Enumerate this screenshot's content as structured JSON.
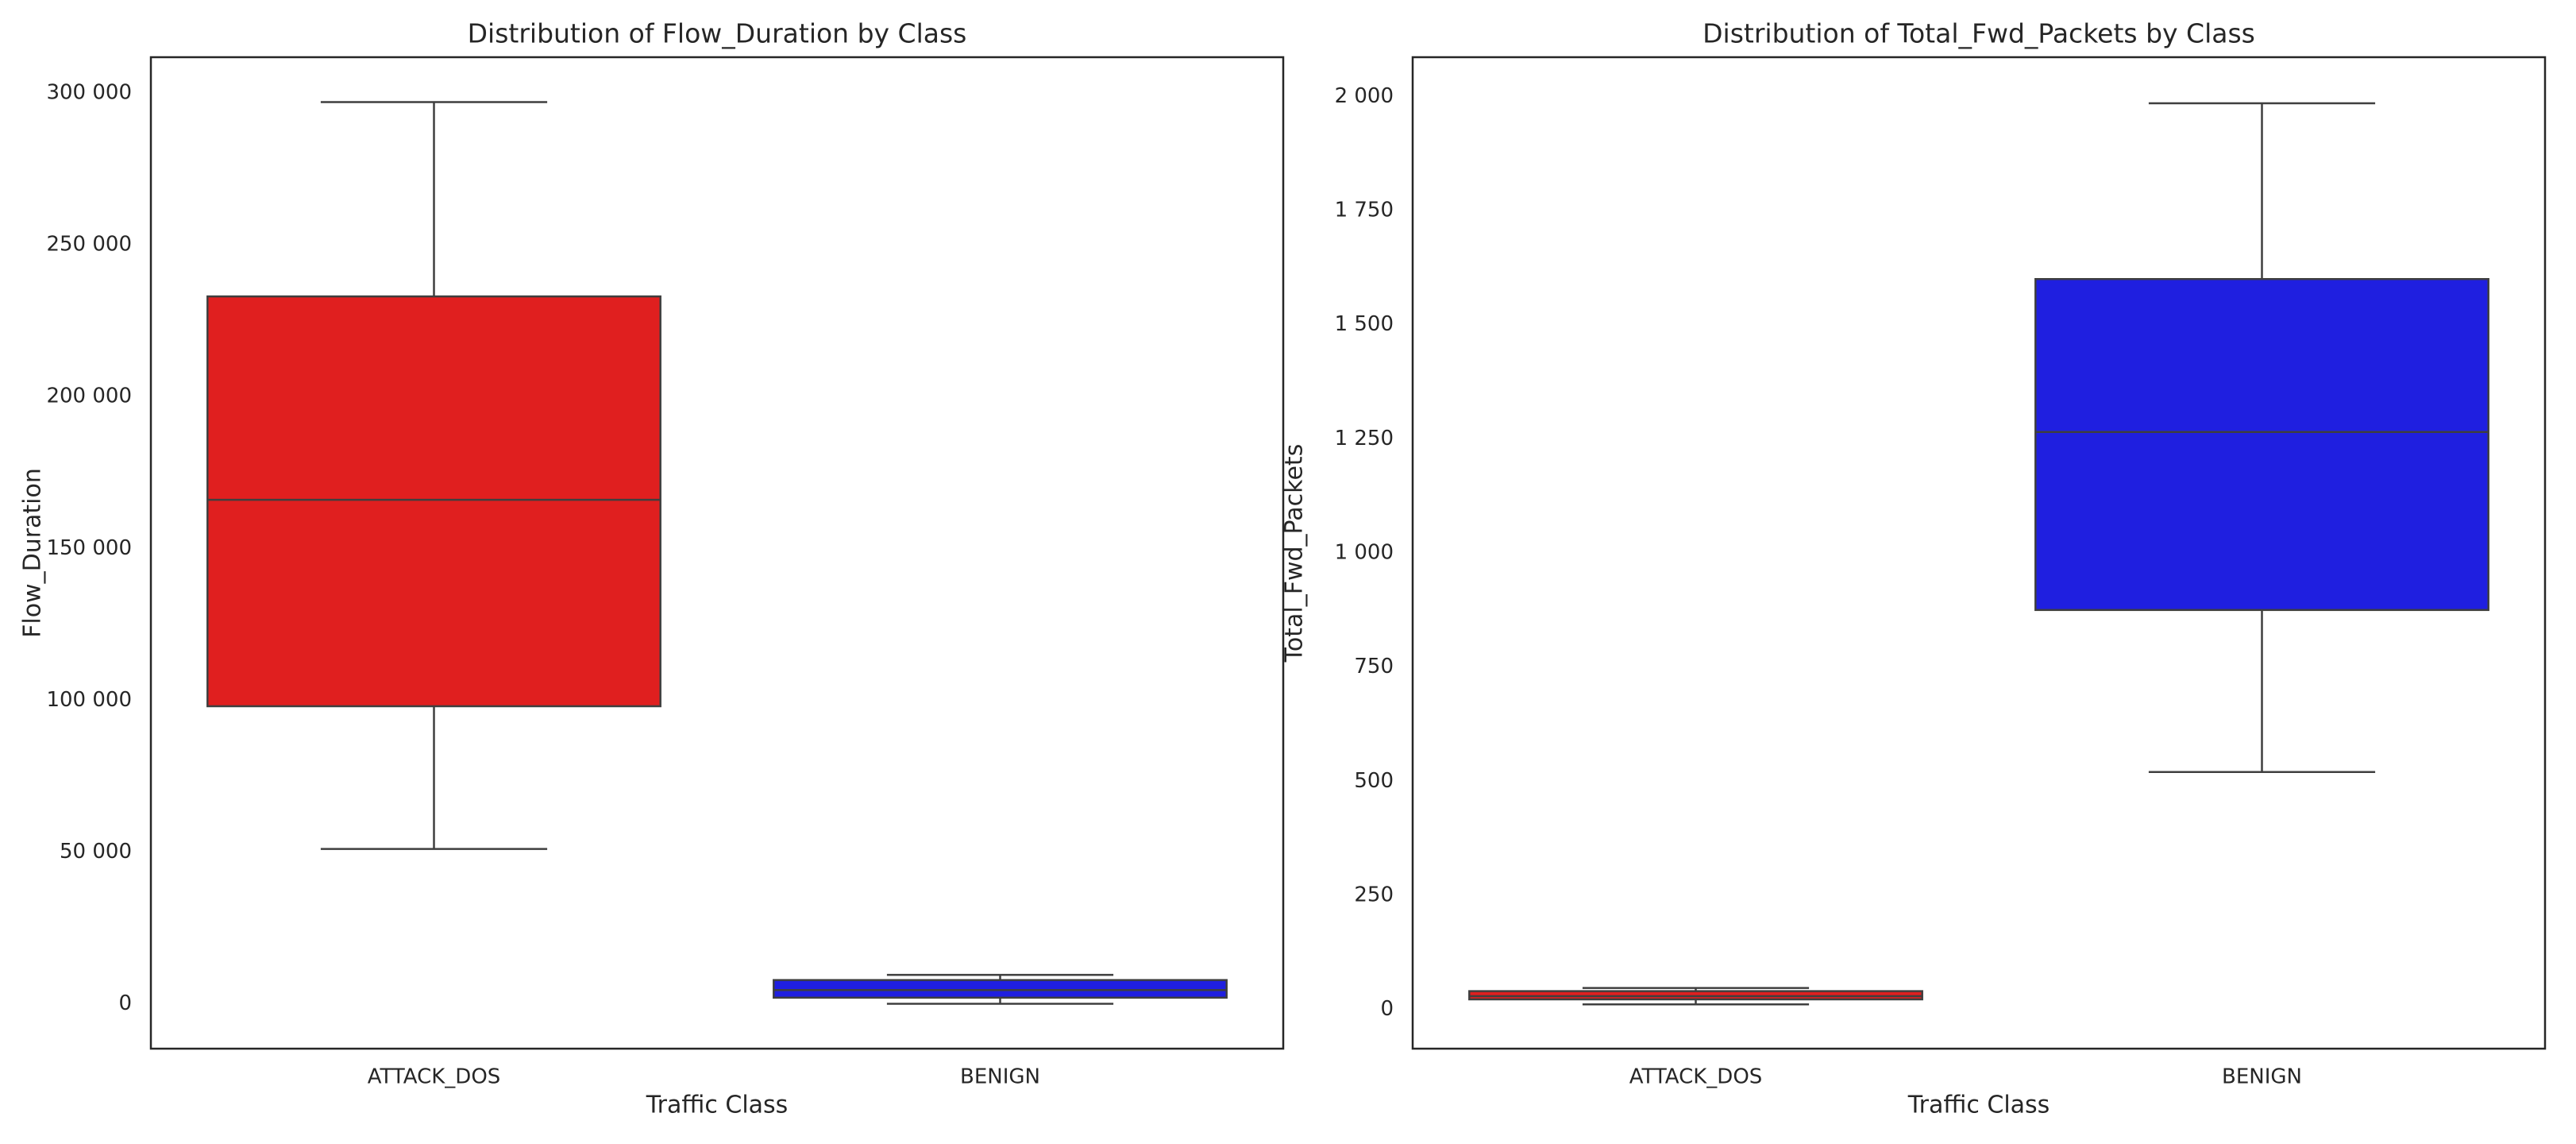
{
  "chart_data": [
    {
      "type": "box",
      "title": "Distribution of Flow_Duration by Class",
      "xlabel": "Traffic Class",
      "ylabel": "Flow_Duration",
      "categories": [
        "ATTACK_DOS",
        "BENIGN"
      ],
      "colors": [
        "#e01f1f",
        "#1f1fe0"
      ],
      "boxes": [
        {
          "whislo": 51000,
          "q1": 98000,
          "med": 166000,
          "q3": 233000,
          "whishi": 297000
        },
        {
          "whislo": 0,
          "q1": 2000,
          "med": 4500,
          "q3": 7800,
          "whishi": 9500
        }
      ],
      "ylim": [
        -14800,
        311800
      ],
      "yticks": [
        0,
        {
          "value": 50000,
          "label": "50 000"
        },
        {
          "value": 100000,
          "label": "100 000"
        },
        {
          "value": 150000,
          "label": "150 000"
        },
        {
          "value": 200000,
          "label": "200 000"
        },
        {
          "value": 250000,
          "label": "250 000"
        },
        {
          "value": 300000,
          "label": "300 000"
        }
      ],
      "grid": false
    },
    {
      "type": "box",
      "title": "Distribution of Total_Fwd_Packets by Class",
      "xlabel": "Traffic Class",
      "ylabel": "Total_Fwd_Packets",
      "categories": [
        "ATTACK_DOS",
        "BENIGN"
      ],
      "colors": [
        "#e01f1f",
        "#1f1fe0"
      ],
      "boxes": [
        {
          "whislo": 11,
          "q1": 22,
          "med": 29,
          "q3": 40,
          "whishi": 47
        },
        {
          "whislo": 520,
          "q1": 875,
          "med": 1265,
          "q3": 1600,
          "whishi": 1985
        }
      ],
      "ylim": [
        -86,
        2086
      ],
      "yticks": [
        0,
        250,
        500,
        750,
        {
          "value": 1000,
          "label": "1 000"
        },
        {
          "value": 1250,
          "label": "1 250"
        },
        {
          "value": 1500,
          "label": "1 500"
        },
        {
          "value": 1750,
          "label": "1 750"
        },
        {
          "value": 2000,
          "label": "2 000"
        }
      ],
      "grid": false
    }
  ]
}
